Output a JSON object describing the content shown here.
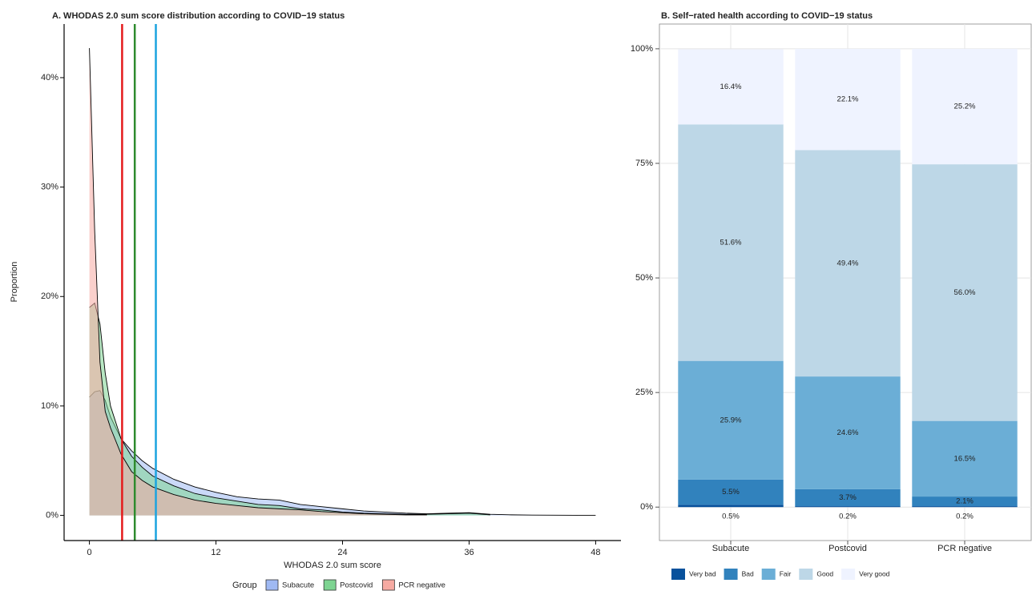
{
  "chart_data": [
    {
      "type": "area",
      "title": "A. WHODAS 2.0 sum score distribution according to COVID−19 status",
      "x_label": "WHODAS 2.0 sum score",
      "y_label": "Proportion",
      "x": [
        0,
        0.5,
        1,
        1.5,
        2,
        3,
        4,
        5,
        6,
        8,
        10,
        12,
        14,
        16,
        18,
        20,
        22,
        24,
        26,
        28,
        30,
        32,
        34,
        36,
        38,
        40,
        42,
        44,
        46,
        48
      ],
      "series": [
        {
          "name": "Subacute",
          "color": "#9fb9f3",
          "values": [
            10.8,
            11.3,
            11.4,
            10.5,
            9,
            7,
            5.9,
            5.0,
            4.3,
            3.3,
            2.6,
            2.1,
            1.7,
            1.5,
            1.4,
            1.0,
            0.8,
            0.6,
            0.4,
            0.3,
            0.2,
            0.15,
            0.2,
            0.25,
            0.1,
            0.05,
            0.03,
            0.02,
            0.01,
            0
          ]
        },
        {
          "name": "Postcovid",
          "color": "#7ed492",
          "values": [
            19,
            19.4,
            17.5,
            13,
            10,
            7,
            5.4,
            4.4,
            3.6,
            2.7,
            2.0,
            1.6,
            1.3,
            1.0,
            0.9,
            0.6,
            0.5,
            0.3,
            0.2,
            0.15,
            0.1,
            0.1,
            0.15,
            0.2,
            0.05,
            null,
            null,
            null,
            null,
            null
          ]
        },
        {
          "name": "PCR negative",
          "color": "#f6aaa2",
          "values": [
            42.7,
            26,
            14,
            9.5,
            8,
            5.6,
            4.0,
            3.2,
            2.6,
            1.9,
            1.4,
            1.1,
            0.9,
            0.7,
            0.6,
            0.5,
            0.35,
            0.25,
            0.15,
            0.1,
            0.05,
            0.05,
            null,
            null,
            null,
            null,
            null,
            null,
            null,
            null
          ]
        }
      ],
      "reference_lines": [
        {
          "x": 3.1,
          "color": "#e41a1c"
        },
        {
          "x": 4.3,
          "color": "#2e8b2e"
        },
        {
          "x": 6.3,
          "color": "#1ba3df"
        }
      ],
      "xlim": [
        -2.4,
        50.4
      ],
      "xticks": [
        0,
        12,
        24,
        36,
        48
      ],
      "ylim": [
        -2.3,
        44.9
      ],
      "yticks": [
        {
          "value": 0,
          "label": "0%"
        },
        {
          "value": 10,
          "label": "10%"
        },
        {
          "value": 20,
          "label": "20%"
        },
        {
          "value": 30,
          "label": "30%"
        },
        {
          "value": 40,
          "label": "40%"
        }
      ],
      "legend_title": "Group",
      "legend": "bottom"
    },
    {
      "type": "stacked_bar",
      "title": "B. Self−rated health according to COVID−19 status",
      "categories": [
        "Subacute",
        "Postcovid",
        "PCR negative"
      ],
      "series": [
        {
          "name": "Very bad",
          "color": "#08519c",
          "values": [
            0.5,
            0.2,
            0.2
          ],
          "value_labels": [
            "0.5%",
            "0.2%",
            "0.2%"
          ]
        },
        {
          "name": "Bad",
          "color": "#3182bd",
          "values": [
            5.5,
            3.7,
            2.1
          ],
          "value_labels": [
            "5.5%",
            "3.7%",
            "2.1%"
          ]
        },
        {
          "name": "Fair",
          "color": "#6baed6",
          "values": [
            25.9,
            24.6,
            16.5
          ],
          "value_labels": [
            "25.9%",
            "24.6%",
            "16.5%"
          ]
        },
        {
          "name": "Good",
          "color": "#bdd7e7",
          "values": [
            51.6,
            49.4,
            56.0
          ],
          "value_labels": [
            "51.6%",
            "49.4%",
            "56.0%"
          ]
        },
        {
          "name": "Very good",
          "color": "#eff3ff",
          "values": [
            16.4,
            22.1,
            25.2
          ],
          "value_labels": [
            "16.4%",
            "22.1%",
            "25.2%"
          ]
        }
      ],
      "ylim": [
        -7.3,
        105.4
      ],
      "yticks": [
        {
          "value": 0,
          "label": "0%"
        },
        {
          "value": 25,
          "label": "25%"
        },
        {
          "value": 50,
          "label": "50%"
        },
        {
          "value": 75,
          "label": "75%"
        },
        {
          "value": 100,
          "label": "100%"
        }
      ],
      "grid": true,
      "legend": "bottom"
    }
  ]
}
